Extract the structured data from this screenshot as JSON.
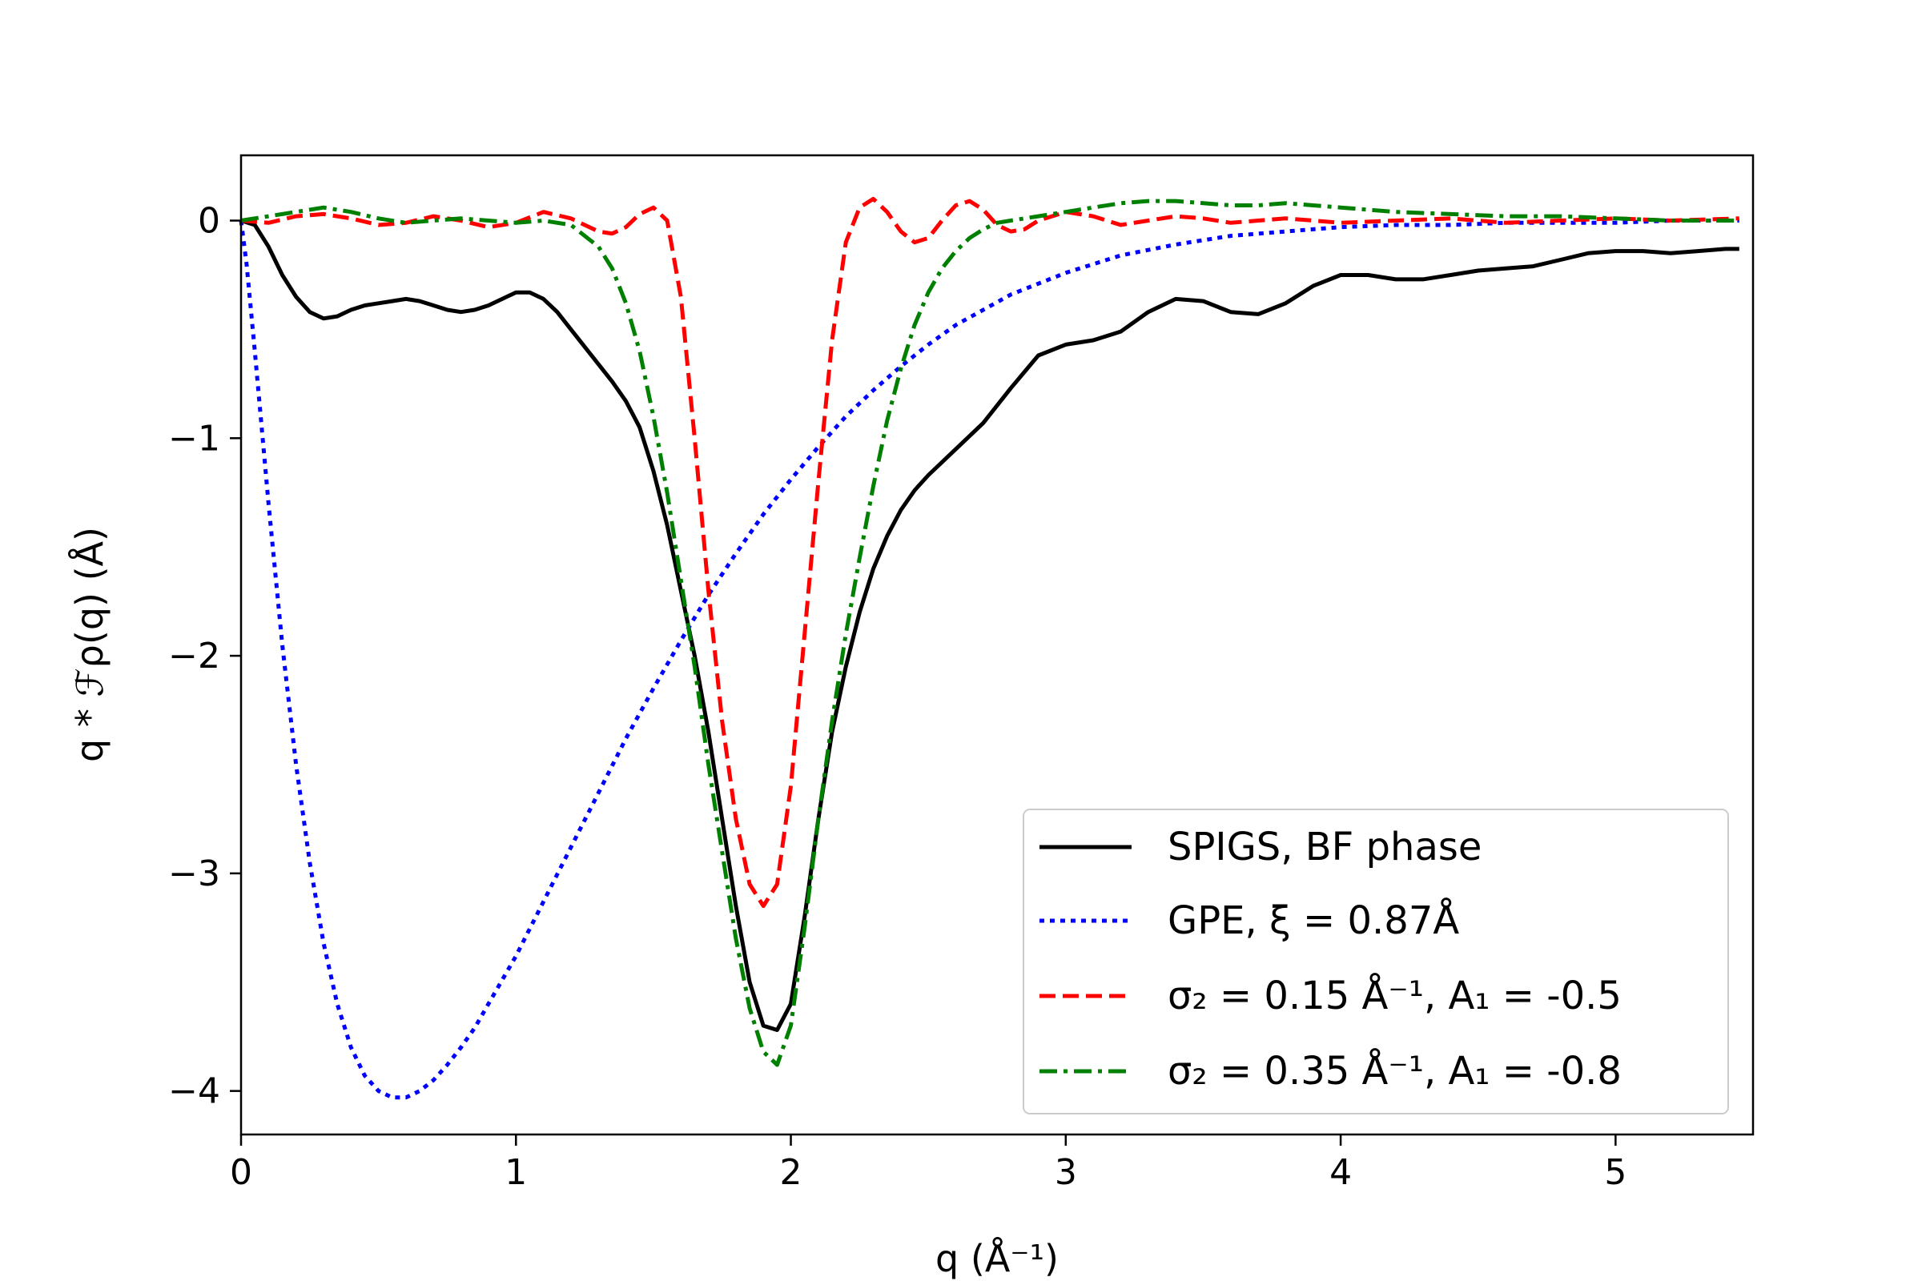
{
  "chart_data": {
    "type": "line",
    "title": "",
    "xlabel": "q (Å⁻¹)",
    "ylabel": "q * ℱρ(q) (Å)",
    "xlim": [
      0,
      5.5
    ],
    "ylim": [
      -4.2,
      0.3
    ],
    "xticks": [
      0,
      1,
      2,
      3,
      4,
      5
    ],
    "yticks": [
      0,
      -1,
      -2,
      -3,
      -4
    ],
    "xtick_labels": [
      "0",
      "1",
      "2",
      "3",
      "4",
      "5"
    ],
    "ytick_labels": [
      "0",
      "−1",
      "−2",
      "−3",
      "−4"
    ],
    "grid": false,
    "legend_position": "bottom-right",
    "series": [
      {
        "name": "SPIGS, BF phase",
        "legend_label": "SPIGS, BF phase",
        "color": "#000000",
        "dash": "solid",
        "x": [
          0.0,
          0.05,
          0.1,
          0.15,
          0.2,
          0.25,
          0.3,
          0.35,
          0.4,
          0.45,
          0.5,
          0.55,
          0.6,
          0.65,
          0.7,
          0.75,
          0.8,
          0.85,
          0.9,
          0.95,
          1.0,
          1.05,
          1.1,
          1.15,
          1.2,
          1.25,
          1.3,
          1.35,
          1.4,
          1.45,
          1.5,
          1.55,
          1.6,
          1.65,
          1.7,
          1.75,
          1.8,
          1.85,
          1.9,
          1.95,
          2.0,
          2.05,
          2.1,
          2.15,
          2.2,
          2.25,
          2.3,
          2.35,
          2.4,
          2.45,
          2.5,
          2.6,
          2.7,
          2.8,
          2.9,
          3.0,
          3.1,
          3.2,
          3.3,
          3.4,
          3.5,
          3.6,
          3.7,
          3.8,
          3.9,
          4.0,
          4.1,
          4.2,
          4.3,
          4.4,
          4.5,
          4.6,
          4.7,
          4.8,
          4.9,
          5.0,
          5.1,
          5.2,
          5.3,
          5.4,
          5.45
        ],
        "y": [
          0.0,
          -0.02,
          -0.12,
          -0.25,
          -0.35,
          -0.42,
          -0.45,
          -0.44,
          -0.41,
          -0.39,
          -0.38,
          -0.37,
          -0.36,
          -0.37,
          -0.39,
          -0.41,
          -0.42,
          -0.41,
          -0.39,
          -0.36,
          -0.33,
          -0.33,
          -0.36,
          -0.42,
          -0.5,
          -0.58,
          -0.66,
          -0.74,
          -0.83,
          -0.95,
          -1.15,
          -1.4,
          -1.7,
          -2.0,
          -2.35,
          -2.75,
          -3.15,
          -3.5,
          -3.7,
          -3.72,
          -3.6,
          -3.2,
          -2.75,
          -2.35,
          -2.05,
          -1.8,
          -1.6,
          -1.45,
          -1.33,
          -1.24,
          -1.17,
          -1.05,
          -0.93,
          -0.77,
          -0.62,
          -0.57,
          -0.55,
          -0.51,
          -0.42,
          -0.36,
          -0.37,
          -0.42,
          -0.43,
          -0.38,
          -0.3,
          -0.25,
          -0.25,
          -0.27,
          -0.27,
          -0.25,
          -0.23,
          -0.22,
          -0.21,
          -0.18,
          -0.15,
          -0.14,
          -0.14,
          -0.15,
          -0.14,
          -0.13,
          -0.13
        ]
      },
      {
        "name": "GPE",
        "legend_label": "GPE, ξ = 0.87Å",
        "color": "#0000ff",
        "dash": "dotted",
        "x": [
          0.0,
          0.02,
          0.05,
          0.1,
          0.15,
          0.2,
          0.25,
          0.3,
          0.35,
          0.4,
          0.45,
          0.5,
          0.55,
          0.6,
          0.65,
          0.7,
          0.75,
          0.8,
          0.85,
          0.9,
          0.95,
          1.0,
          1.1,
          1.2,
          1.3,
          1.4,
          1.5,
          1.6,
          1.7,
          1.8,
          1.9,
          2.0,
          2.1,
          2.2,
          2.3,
          2.4,
          2.5,
          2.6,
          2.7,
          2.8,
          2.9,
          3.0,
          3.2,
          3.4,
          3.6,
          3.8,
          4.0,
          4.2,
          4.4,
          4.6,
          4.8,
          5.0,
          5.2,
          5.45
        ],
        "y": [
          0.0,
          -0.2,
          -0.6,
          -1.3,
          -1.95,
          -2.5,
          -2.95,
          -3.32,
          -3.6,
          -3.8,
          -3.93,
          -4.0,
          -4.03,
          -4.03,
          -4.0,
          -3.95,
          -3.88,
          -3.8,
          -3.71,
          -3.6,
          -3.49,
          -3.38,
          -3.13,
          -2.88,
          -2.63,
          -2.38,
          -2.15,
          -1.93,
          -1.72,
          -1.53,
          -1.35,
          -1.19,
          -1.04,
          -0.9,
          -0.78,
          -0.67,
          -0.57,
          -0.48,
          -0.41,
          -0.34,
          -0.29,
          -0.24,
          -0.16,
          -0.11,
          -0.07,
          -0.05,
          -0.03,
          -0.02,
          -0.02,
          -0.01,
          -0.01,
          -0.01,
          -0.0,
          0.0
        ]
      },
      {
        "name": "sigma2 = 0.15",
        "legend_label": "σ₂ = 0.15 Å⁻¹, A₁ = -0.5",
        "color": "#ff0000",
        "dash": "dashed",
        "x": [
          0.0,
          0.1,
          0.2,
          0.3,
          0.4,
          0.5,
          0.6,
          0.7,
          0.8,
          0.9,
          1.0,
          1.1,
          1.2,
          1.3,
          1.35,
          1.4,
          1.45,
          1.5,
          1.55,
          1.6,
          1.65,
          1.7,
          1.75,
          1.8,
          1.85,
          1.9,
          1.95,
          2.0,
          2.05,
          2.1,
          2.15,
          2.2,
          2.25,
          2.3,
          2.35,
          2.4,
          2.45,
          2.5,
          2.55,
          2.6,
          2.65,
          2.7,
          2.75,
          2.8,
          2.85,
          2.9,
          3.0,
          3.1,
          3.2,
          3.3,
          3.4,
          3.5,
          3.6,
          3.7,
          3.8,
          3.9,
          4.0,
          4.2,
          4.4,
          4.6,
          4.8,
          5.0,
          5.2,
          5.45
        ],
        "y": [
          0.0,
          -0.01,
          0.02,
          0.03,
          0.01,
          -0.02,
          -0.01,
          0.02,
          0.0,
          -0.03,
          -0.01,
          0.04,
          0.01,
          -0.05,
          -0.06,
          -0.03,
          0.03,
          0.06,
          0.0,
          -0.35,
          -1.0,
          -1.7,
          -2.3,
          -2.75,
          -3.05,
          -3.15,
          -3.05,
          -2.6,
          -1.9,
          -1.2,
          -0.55,
          -0.1,
          0.06,
          0.1,
          0.04,
          -0.05,
          -0.1,
          -0.08,
          0.0,
          0.07,
          0.09,
          0.05,
          -0.02,
          -0.05,
          -0.04,
          0.0,
          0.04,
          0.02,
          -0.02,
          0.0,
          0.02,
          0.01,
          -0.01,
          0.0,
          0.01,
          0.0,
          -0.01,
          0.0,
          0.01,
          -0.01,
          0.0,
          0.01,
          0.0,
          0.01
        ]
      },
      {
        "name": "sigma2 = 0.35",
        "legend_label": "σ₂ = 0.35 Å⁻¹, A₁ = -0.8",
        "color": "#008000",
        "dash": "dashdot",
        "x": [
          0.0,
          0.1,
          0.2,
          0.3,
          0.4,
          0.5,
          0.6,
          0.7,
          0.8,
          0.9,
          1.0,
          1.1,
          1.2,
          1.3,
          1.35,
          1.4,
          1.45,
          1.5,
          1.55,
          1.6,
          1.65,
          1.7,
          1.75,
          1.8,
          1.85,
          1.9,
          1.95,
          2.0,
          2.05,
          2.1,
          2.15,
          2.2,
          2.25,
          2.3,
          2.35,
          2.4,
          2.45,
          2.5,
          2.55,
          2.6,
          2.65,
          2.7,
          2.75,
          2.8,
          2.85,
          2.9,
          3.0,
          3.1,
          3.2,
          3.3,
          3.4,
          3.5,
          3.6,
          3.7,
          3.8,
          3.9,
          4.0,
          4.2,
          4.4,
          4.6,
          4.8,
          5.0,
          5.2,
          5.45
        ],
        "y": [
          0.0,
          0.02,
          0.04,
          0.06,
          0.04,
          0.01,
          -0.01,
          0.0,
          0.01,
          0.0,
          -0.01,
          0.0,
          -0.02,
          -0.12,
          -0.22,
          -0.38,
          -0.6,
          -0.9,
          -1.25,
          -1.65,
          -2.05,
          -2.5,
          -2.9,
          -3.3,
          -3.62,
          -3.82,
          -3.88,
          -3.7,
          -3.25,
          -2.75,
          -2.3,
          -1.9,
          -1.55,
          -1.22,
          -0.92,
          -0.68,
          -0.48,
          -0.33,
          -0.22,
          -0.14,
          -0.08,
          -0.04,
          -0.01,
          0.0,
          0.01,
          0.02,
          0.04,
          0.06,
          0.08,
          0.09,
          0.09,
          0.08,
          0.07,
          0.07,
          0.08,
          0.07,
          0.06,
          0.04,
          0.03,
          0.02,
          0.02,
          0.01,
          0.0,
          0.0
        ]
      }
    ]
  }
}
